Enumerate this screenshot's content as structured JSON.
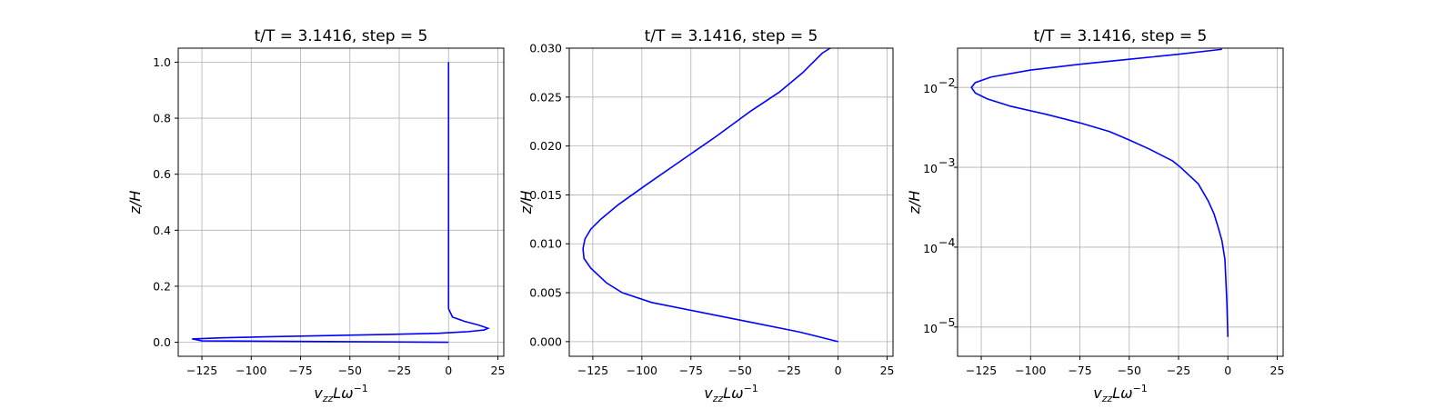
{
  "chart_data": [
    {
      "type": "line",
      "title": "t/T = 3.1416, step = 5",
      "xlabel_main": "v",
      "xlabel_sub": "zz",
      "xlabel_rest": "Lω",
      "xlabel_sup": "−1",
      "ylabel": "z/H",
      "xlim": [
        -137,
        28
      ],
      "ylim": [
        -0.05,
        1.05
      ],
      "yscale": "linear",
      "grid": true,
      "line_color": "#0000ff",
      "xticks": [
        -125,
        -100,
        -75,
        -50,
        -25,
        0,
        25
      ],
      "xtick_labels": [
        "−125",
        "−100",
        "−75",
        "−50",
        "−25",
        "0",
        "25"
      ],
      "yticks": [
        0.0,
        0.2,
        0.4,
        0.6,
        0.8,
        1.0
      ],
      "ytick_labels": [
        "0.0",
        "0.2",
        "0.4",
        "0.6",
        "0.8",
        "1.0"
      ],
      "series": [
        {
          "x": [
            0,
            -125,
            -130,
            -115,
            -90,
            -60,
            -30,
            -5,
            10,
            18,
            20,
            15,
            8,
            2,
            0,
            0,
            0
          ],
          "y": [
            0.0,
            0.005,
            0.012,
            0.016,
            0.02,
            0.024,
            0.028,
            0.032,
            0.038,
            0.044,
            0.05,
            0.062,
            0.075,
            0.09,
            0.12,
            0.2,
            1.0
          ]
        }
      ]
    },
    {
      "type": "line",
      "title": "t/T = 3.1416, step = 5",
      "xlabel_main": "v",
      "xlabel_sub": "zz",
      "xlabel_rest": "Lω",
      "xlabel_sup": "−1",
      "ylabel": "z/H",
      "xlim": [
        -137,
        28
      ],
      "ylim": [
        -0.0015,
        0.03
      ],
      "yscale": "linear",
      "grid": true,
      "line_color": "#0000ff",
      "xticks": [
        -125,
        -100,
        -75,
        -50,
        -25,
        0,
        25
      ],
      "xtick_labels": [
        "−125",
        "−100",
        "−75",
        "−50",
        "−25",
        "0",
        "25"
      ],
      "yticks": [
        0.0,
        0.005,
        0.01,
        0.015,
        0.02,
        0.025,
        0.03
      ],
      "ytick_labels": [
        "0.000",
        "0.005",
        "0.010",
        "0.015",
        "0.020",
        "0.025",
        "0.030"
      ],
      "series": [
        {
          "x": [
            0,
            -20,
            -45,
            -70,
            -95,
            -110,
            -118,
            -126,
            -129.5,
            -130,
            -129,
            -126,
            -121,
            -112,
            -98,
            -80,
            -62,
            -45,
            -30,
            -18,
            -8,
            -4
          ],
          "y": [
            0.0,
            0.001,
            0.002,
            0.003,
            0.004,
            0.005,
            0.006,
            0.0075,
            0.0085,
            0.0095,
            0.0105,
            0.0115,
            0.0125,
            0.014,
            0.016,
            0.0185,
            0.021,
            0.0235,
            0.0255,
            0.0275,
            0.0295,
            0.03
          ]
        }
      ]
    },
    {
      "type": "line",
      "title": "t/T = 3.1416, step = 5",
      "xlabel_main": "v",
      "xlabel_sub": "zz",
      "xlabel_rest": "Lω",
      "xlabel_sup": "−1",
      "ylabel": "z/H",
      "xlim": [
        -137,
        28
      ],
      "ylim": [
        4.3e-06,
        0.031
      ],
      "yscale": "log",
      "grid": true,
      "line_color": "#0000ff",
      "xticks": [
        -125,
        -100,
        -75,
        -50,
        -25,
        0,
        25
      ],
      "xtick_labels": [
        "−125",
        "−100",
        "−75",
        "−50",
        "−25",
        "0",
        "25"
      ],
      "yticks": [
        1e-05,
        0.0001,
        0.001,
        0.01
      ],
      "ytick_labels": [
        "10",
        "10",
        "10",
        "10"
      ],
      "ytick_exps": [
        "−5",
        "−4",
        "−3",
        "−2"
      ],
      "series": [
        {
          "x": [
            0,
            -0.5,
            -1.5,
            -3,
            -5,
            -7,
            -10,
            -15,
            -24,
            -28,
            -40,
            -50,
            -60,
            -75,
            -92,
            -110,
            -122,
            -128,
            -130,
            -128,
            -120,
            -100,
            -75,
            -50,
            -25,
            -3
          ],
          "y": [
            7.5e-06,
            2e-05,
            7e-05,
            0.00012,
            0.00018,
            0.00026,
            0.00038,
            0.00062,
            0.001,
            0.0012,
            0.0017,
            0.0022,
            0.0028,
            0.0036,
            0.0046,
            0.0058,
            0.0072,
            0.0085,
            0.01,
            0.0115,
            0.0135,
            0.0165,
            0.0195,
            0.0225,
            0.026,
            0.03
          ]
        }
      ]
    }
  ]
}
